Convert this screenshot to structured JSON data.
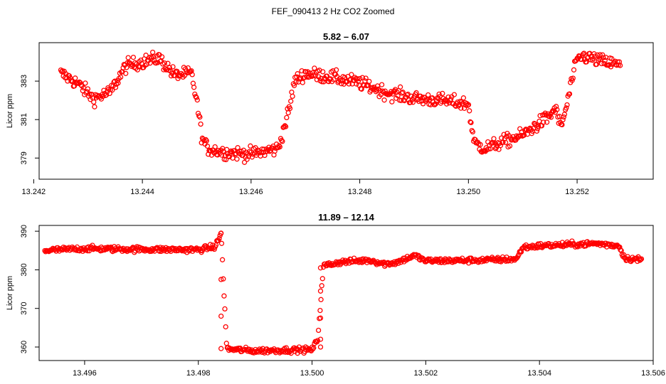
{
  "figure": {
    "title": "FEF_090413  2 Hz CO2 Zoomed"
  },
  "chart_data": [
    {
      "type": "scatter",
      "title": "5.82 – 6.07",
      "xlabel": "",
      "ylabel": "Licor ppm",
      "xlim": [
        13.2421,
        13.2534
      ],
      "ylim": [
        377.9,
        385.0
      ],
      "xticks": [
        "13.242",
        "13.244",
        "13.246",
        "13.248",
        "13.250",
        "13.252"
      ],
      "xtick_values": [
        13.242,
        13.244,
        13.246,
        13.248,
        13.25,
        13.252
      ],
      "yticks": [
        "379",
        "381",
        "383"
      ],
      "ytick_values": [
        379,
        381,
        383
      ],
      "marker": "open circle",
      "color": "#ff0000",
      "series": [
        {
          "x": [
            13.2425,
            13.2428,
            13.2431,
            13.2434,
            13.2437,
            13.244,
            13.2443,
            13.2446,
            13.2449,
            13.245,
            13.2451,
            13.2452,
            13.2455,
            13.246,
            13.2465,
            13.2467,
            13.2468,
            13.247,
            13.2475,
            13.248,
            13.2485,
            13.249,
            13.2495,
            13.25,
            13.2501,
            13.2503,
            13.2505,
            13.251,
            13.2515,
            13.2516,
            13.2517,
            13.2518,
            13.2519,
            13.252,
            13.2521,
            13.2525,
            13.2528
          ],
          "y": [
            383.4,
            382.9,
            382.1,
            382.4,
            383.8,
            384.0,
            384.2,
            383.3,
            383.4,
            382.0,
            380.0,
            379.5,
            379.3,
            379.2,
            379.5,
            381.5,
            383.0,
            383.4,
            383.2,
            382.9,
            382.4,
            382.1,
            382.0,
            381.8,
            379.8,
            379.5,
            379.7,
            380.2,
            381.2,
            381.6,
            380.6,
            381.6,
            383.0,
            384.1,
            384.3,
            384.0,
            383.8
          ],
          "noise": 0.35
        }
      ]
    },
    {
      "type": "scatter",
      "title": "11.89 – 12.14",
      "xlabel": "",
      "ylabel": "Licor ppm",
      "xlim": [
        13.4952,
        13.506
      ],
      "ylim": [
        356.5,
        391.5
      ],
      "xticks": [
        "13.496",
        "13.498",
        "13.500",
        "13.502",
        "13.504",
        "13.506"
      ],
      "xtick_values": [
        13.496,
        13.498,
        13.5,
        13.502,
        13.504,
        13.506
      ],
      "yticks": [
        "360",
        "370",
        "380",
        "390"
      ],
      "ytick_values": [
        360,
        370,
        380,
        390
      ],
      "marker": "open circle",
      "color": "#ff0000",
      "series": [
        {
          "x": [
            13.4953,
            13.496,
            13.497,
            13.498,
            13.4983,
            13.4984,
            13.4985,
            13.499,
            13.4995,
            13.5,
            13.5001,
            13.5002,
            13.5005,
            13.501,
            13.5013,
            13.5015,
            13.5018,
            13.502,
            13.503,
            13.5036,
            13.5037,
            13.504,
            13.505,
            13.5054,
            13.5055,
            13.5058
          ],
          "y": [
            385.0,
            385.5,
            385.3,
            385.2,
            386.0,
            389.5,
            359.5,
            359.0,
            359.2,
            359.3,
            362.0,
            381.0,
            382.0,
            382.5,
            381.5,
            382.0,
            383.7,
            382.3,
            382.5,
            382.8,
            385.8,
            386.2,
            386.8,
            386.2,
            383.0,
            382.6
          ],
          "jumps": [
            {
              "x": 13.4984,
              "y": [
                389.5,
                377.5,
                368.0,
                359.6
              ]
            },
            {
              "x": 13.50015,
              "y": [
                360.0,
                362.0,
                367.5,
                374.5,
                380.5
              ]
            }
          ],
          "noise": 0.7
        }
      ]
    }
  ]
}
